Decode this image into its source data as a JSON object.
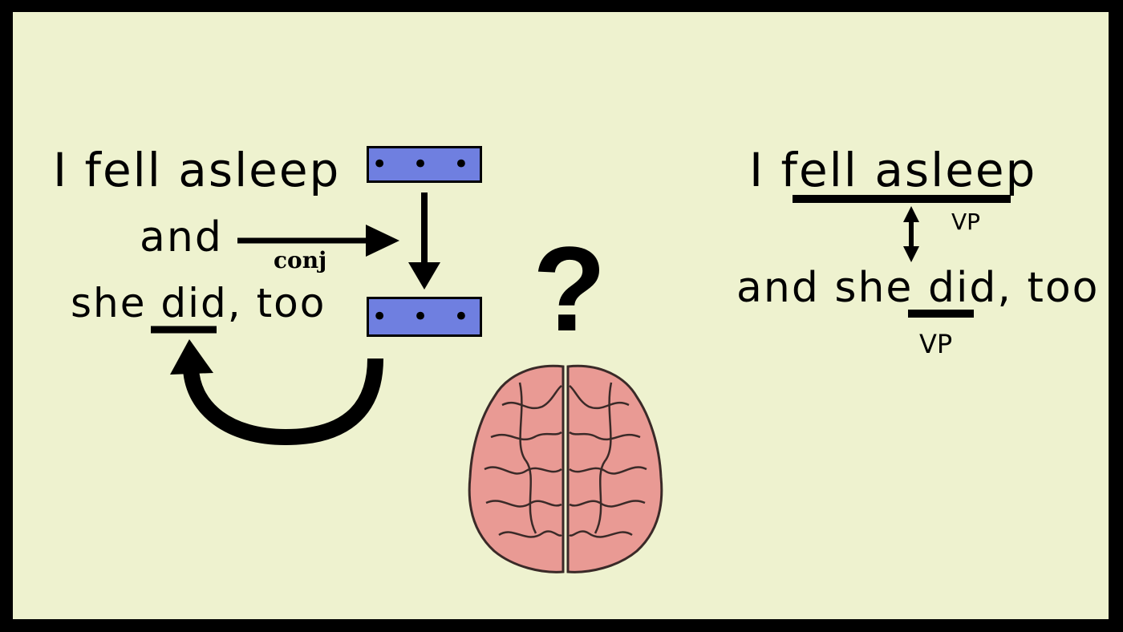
{
  "left_panel": {
    "line1": "I fell asleep",
    "line2": "and",
    "line3_prefix": "she ",
    "line3_did": "did,",
    "line3_suffix": " too",
    "arrow_label": "conj",
    "vector_dots": "• • •"
  },
  "center": {
    "question_mark": "?",
    "brain_icon": "brain-icon"
  },
  "right_panel": {
    "line1_prefix": "I ",
    "line1_vp": "fell asleep",
    "vp_label_top": "VP",
    "line2_prefix": "and she ",
    "line2_did": "did,",
    "line2_suffix": " too",
    "vp_label_bottom": "VP"
  },
  "colors": {
    "background": "#eef2cf",
    "vector_fill": "#6f7fe0",
    "brain_fill": "#e99a94"
  }
}
